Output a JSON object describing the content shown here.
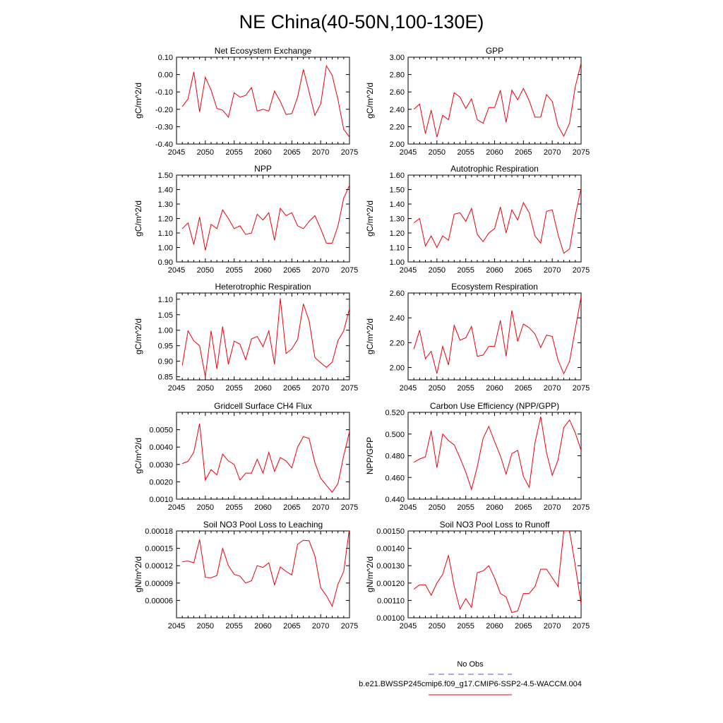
{
  "title": "NE China(40-50N,100-130E)",
  "legend": {
    "obs_label": "No Obs",
    "obs_color": "#5555cc",
    "model_label": "b.e21.BWSSP245cmip6.f09_g17.CMIP6-SSP2-4.5-WACCM.004",
    "model_color": "#e8000b"
  },
  "chart_data": [
    {
      "type": "line",
      "title": "Net Ecosystem Exchange",
      "ylabel": "gC/m^2/d",
      "xlim": [
        2045,
        2075
      ],
      "xticks": [
        "2045",
        "2050",
        "2055",
        "2060",
        "2065",
        "2070",
        "2075"
      ],
      "ylim": [
        -0.4,
        0.1
      ],
      "yticks": [
        "-0.40",
        "-0.30",
        "-0.20",
        "-0.10",
        "0.00",
        "0.10"
      ],
      "x": [
        2046,
        2047,
        2048,
        2049,
        2050,
        2051,
        2052,
        2053,
        2054,
        2055,
        2056,
        2057,
        2058,
        2059,
        2060,
        2061,
        2062,
        2063,
        2064,
        2065,
        2066,
        2067,
        2068,
        2069,
        2070,
        2071,
        2072,
        2073,
        2074,
        2075
      ],
      "series": [
        {
          "values": [
            -0.185,
            -0.14,
            0.015,
            -0.215,
            -0.015,
            -0.09,
            -0.195,
            -0.205,
            -0.245,
            -0.105,
            -0.13,
            -0.12,
            -0.075,
            -0.21,
            -0.2,
            -0.21,
            -0.095,
            -0.155,
            -0.23,
            -0.225,
            -0.13,
            0.03,
            -0.1,
            -0.235,
            -0.17,
            0.05,
            -0.005,
            -0.145,
            -0.315,
            -0.36
          ]
        }
      ]
    },
    {
      "type": "line",
      "title": "GPP",
      "ylabel": "gC/m^2/d",
      "xlim": [
        2045,
        2075
      ],
      "xticks": [
        "2045",
        "2050",
        "2055",
        "2060",
        "2065",
        "2070",
        "2075"
      ],
      "ylim": [
        2.0,
        3.0
      ],
      "yticks": [
        "2.00",
        "2.20",
        "2.40",
        "2.60",
        "2.80",
        "3.00"
      ],
      "x": [
        2046,
        2047,
        2048,
        2049,
        2050,
        2051,
        2052,
        2053,
        2054,
        2055,
        2056,
        2057,
        2058,
        2059,
        2060,
        2061,
        2062,
        2063,
        2064,
        2065,
        2066,
        2067,
        2068,
        2069,
        2070,
        2071,
        2072,
        2073,
        2074,
        2075
      ],
      "series": [
        {
          "values": [
            2.4,
            2.46,
            2.12,
            2.39,
            2.08,
            2.33,
            2.28,
            2.59,
            2.54,
            2.41,
            2.52,
            2.28,
            2.24,
            2.42,
            2.42,
            2.62,
            2.25,
            2.62,
            2.51,
            2.64,
            2.5,
            2.31,
            2.31,
            2.57,
            2.49,
            2.21,
            2.09,
            2.24,
            2.66,
            2.93
          ]
        }
      ]
    },
    {
      "type": "line",
      "title": "NPP",
      "ylabel": "gC/m^2/d",
      "xlim": [
        2045,
        2075
      ],
      "xticks": [
        "2045",
        "2050",
        "2055",
        "2060",
        "2065",
        "2070",
        "2075"
      ],
      "ylim": [
        0.9,
        1.5
      ],
      "yticks": [
        "0.90",
        "1.00",
        "1.10",
        "1.20",
        "1.30",
        "1.40",
        "1.50"
      ],
      "x": [
        2046,
        2047,
        2048,
        2049,
        2050,
        2051,
        2052,
        2053,
        2054,
        2055,
        2056,
        2057,
        2058,
        2059,
        2060,
        2061,
        2062,
        2063,
        2064,
        2065,
        2066,
        2067,
        2068,
        2069,
        2070,
        2071,
        2072,
        2073,
        2074,
        2075
      ],
      "series": [
        {
          "values": [
            1.13,
            1.17,
            1.02,
            1.21,
            0.98,
            1.16,
            1.13,
            1.26,
            1.2,
            1.13,
            1.15,
            1.09,
            1.1,
            1.23,
            1.19,
            1.24,
            1.05,
            1.27,
            1.22,
            1.24,
            1.15,
            1.13,
            1.18,
            1.22,
            1.13,
            1.03,
            1.03,
            1.15,
            1.34,
            1.43
          ]
        }
      ]
    },
    {
      "type": "line",
      "title": "Autotrophic Respiration",
      "ylabel": "gC/m^2/d",
      "xlim": [
        2045,
        2075
      ],
      "xticks": [
        "2045",
        "2050",
        "2055",
        "2060",
        "2065",
        "2070",
        "2075"
      ],
      "ylim": [
        1.0,
        1.6
      ],
      "yticks": [
        "1.00",
        "1.10",
        "1.20",
        "1.30",
        "1.40",
        "1.50",
        "1.60"
      ],
      "x": [
        2046,
        2047,
        2048,
        2049,
        2050,
        2051,
        2052,
        2053,
        2054,
        2055,
        2056,
        2057,
        2058,
        2059,
        2060,
        2061,
        2062,
        2063,
        2064,
        2065,
        2066,
        2067,
        2068,
        2069,
        2070,
        2071,
        2072,
        2073,
        2074,
        2075
      ],
      "series": [
        {
          "values": [
            1.27,
            1.3,
            1.11,
            1.18,
            1.1,
            1.18,
            1.15,
            1.33,
            1.34,
            1.28,
            1.37,
            1.19,
            1.14,
            1.2,
            1.23,
            1.38,
            1.2,
            1.36,
            1.29,
            1.41,
            1.34,
            1.18,
            1.13,
            1.35,
            1.36,
            1.19,
            1.06,
            1.09,
            1.32,
            1.51
          ]
        }
      ]
    },
    {
      "type": "line",
      "title": "Heterotrophic Respiration",
      "ylabel": "gC/m^2/d",
      "xlim": [
        2045,
        2075
      ],
      "xticks": [
        "2045",
        "2050",
        "2055",
        "2060",
        "2065",
        "2070",
        "2075"
      ],
      "ylim": [
        0.84,
        1.12
      ],
      "yticks": [
        "0.85",
        "0.90",
        "0.95",
        "1.00",
        "1.05",
        "1.10"
      ],
      "x": [
        2046,
        2047,
        2048,
        2049,
        2050,
        2051,
        2052,
        2053,
        2054,
        2055,
        2056,
        2057,
        2058,
        2059,
        2060,
        2061,
        2062,
        2063,
        2064,
        2065,
        2066,
        2067,
        2068,
        2069,
        2070,
        2071,
        2072,
        2073,
        2074,
        2075
      ],
      "series": [
        {
          "values": [
            0.887,
            0.998,
            0.966,
            0.95,
            0.85,
            0.998,
            0.875,
            1.012,
            0.89,
            0.965,
            0.955,
            0.905,
            0.972,
            0.98,
            0.947,
            0.998,
            0.89,
            1.103,
            0.925,
            0.94,
            0.97,
            1.085,
            1.03,
            0.912,
            0.895,
            0.88,
            0.897,
            0.967,
            0.998,
            1.07
          ]
        }
      ]
    },
    {
      "type": "line",
      "title": "Ecosystem Respiration",
      "ylabel": "gC/m^2/d",
      "xlim": [
        2045,
        2075
      ],
      "xticks": [
        "2045",
        "2050",
        "2055",
        "2060",
        "2065",
        "2070",
        "2075"
      ],
      "ylim": [
        1.9,
        2.6
      ],
      "yticks": [
        "2.00",
        "2.20",
        "2.40",
        "2.60"
      ],
      "x": [
        2046,
        2047,
        2048,
        2049,
        2050,
        2051,
        2052,
        2053,
        2054,
        2055,
        2056,
        2057,
        2058,
        2059,
        2060,
        2061,
        2062,
        2063,
        2064,
        2065,
        2066,
        2067,
        2068,
        2069,
        2070,
        2071,
        2072,
        2073,
        2074,
        2075
      ],
      "series": [
        {
          "values": [
            2.15,
            2.3,
            2.07,
            2.13,
            1.95,
            2.17,
            2.02,
            2.34,
            2.22,
            2.24,
            2.33,
            2.09,
            2.1,
            2.17,
            2.17,
            2.38,
            2.09,
            2.46,
            2.21,
            2.35,
            2.32,
            2.27,
            2.16,
            2.26,
            2.25,
            2.06,
            1.95,
            2.05,
            2.31,
            2.57
          ]
        }
      ]
    },
    {
      "type": "line",
      "title": "Gridcell Surface CH4 Flux",
      "ylabel": "gC/m^2/d",
      "xlim": [
        2045,
        2075
      ],
      "xticks": [
        "2045",
        "2050",
        "2055",
        "2060",
        "2065",
        "2070",
        "2075"
      ],
      "ylim": [
        0.001,
        0.006
      ],
      "yticks": [
        "0.0010",
        "0.0020",
        "0.0030",
        "0.0040",
        "0.0050"
      ],
      "x": [
        2046,
        2047,
        2048,
        2049,
        2050,
        2051,
        2052,
        2053,
        2054,
        2055,
        2056,
        2057,
        2058,
        2059,
        2060,
        2061,
        2062,
        2063,
        2064,
        2065,
        2066,
        2067,
        2068,
        2069,
        2070,
        2071,
        2072,
        2073,
        2074,
        2075
      ],
      "series": [
        {
          "values": [
            0.00305,
            0.00318,
            0.0037,
            0.00535,
            0.0021,
            0.0027,
            0.0024,
            0.0036,
            0.0032,
            0.003,
            0.0021,
            0.0025,
            0.0025,
            0.0033,
            0.0025,
            0.0037,
            0.0026,
            0.0034,
            0.0032,
            0.0028,
            0.004,
            0.0046,
            0.0045,
            0.0031,
            0.0022,
            0.0018,
            0.0014,
            0.0019,
            0.0035,
            0.0049
          ]
        }
      ]
    },
    {
      "type": "line",
      "title": "Carbon Use Efficiency (NPP/GPP)",
      "ylabel": "NPP/GPP",
      "xlim": [
        2045,
        2075
      ],
      "xticks": [
        "2045",
        "2050",
        "2055",
        "2060",
        "2065",
        "2070",
        "2075"
      ],
      "ylim": [
        0.44,
        0.52
      ],
      "yticks": [
        "0.440",
        "0.460",
        "0.480",
        "0.500",
        "0.520"
      ],
      "x": [
        2046,
        2047,
        2048,
        2049,
        2050,
        2051,
        2052,
        2053,
        2054,
        2055,
        2056,
        2057,
        2058,
        2059,
        2060,
        2061,
        2062,
        2063,
        2064,
        2065,
        2066,
        2067,
        2068,
        2069,
        2070,
        2071,
        2072,
        2073,
        2074,
        2075
      ],
      "series": [
        {
          "values": [
            0.474,
            0.477,
            0.479,
            0.503,
            0.469,
            0.5,
            0.494,
            0.49,
            0.478,
            0.465,
            0.449,
            0.47,
            0.496,
            0.507,
            0.493,
            0.48,
            0.463,
            0.482,
            0.485,
            0.461,
            0.451,
            0.492,
            0.516,
            0.483,
            0.462,
            0.476,
            0.506,
            0.513,
            0.501,
            0.485
          ]
        }
      ]
    },
    {
      "type": "line",
      "title": "Soil NO3 Pool Loss to Leaching",
      "ylabel": "gN/m^2/d",
      "xlim": [
        2045,
        2075
      ],
      "xticks": [
        "2045",
        "2050",
        "2055",
        "2060",
        "2065",
        "2070",
        "2075"
      ],
      "ylim": [
        3e-05,
        0.00018
      ],
      "yticks": [
        "0.00006",
        "0.00009",
        "0.00012",
        "0.00015",
        "0.00018"
      ],
      "x": [
        2046,
        2047,
        2048,
        2049,
        2050,
        2051,
        2052,
        2053,
        2054,
        2055,
        2056,
        2057,
        2058,
        2059,
        2060,
        2061,
        2062,
        2063,
        2064,
        2065,
        2066,
        2067,
        2068,
        2069,
        2070,
        2071,
        2072,
        2073,
        2074,
        2075
      ],
      "series": [
        {
          "values": [
            0.000127,
            0.000128,
            0.000125,
            0.000165,
            0.0001,
            9.9e-05,
            0.000103,
            0.00015,
            0.00012,
            0.000105,
            0.000102,
            9e-05,
            9.4e-05,
            0.00012,
            0.000117,
            0.000125,
            8.7e-05,
            0.000118,
            0.00011,
            0.000104,
            0.000157,
            0.000164,
            0.000163,
            0.000137,
            8.2e-05,
            6.8e-05,
            5e-05,
            8.8e-05,
            0.00011,
            0.000185
          ]
        }
      ]
    },
    {
      "type": "line",
      "title": "Soil NO3 Pool Loss to Runoff",
      "ylabel": "gN/m^2/d",
      "xlim": [
        2045,
        2075
      ],
      "xticks": [
        "2045",
        "2050",
        "2055",
        "2060",
        "2065",
        "2070",
        "2075"
      ],
      "ylim": [
        0.001,
        0.0015
      ],
      "yticks": [
        "0.00100",
        "0.00110",
        "0.00120",
        "0.00130",
        "0.00140",
        "0.00150"
      ],
      "x": [
        2046,
        2047,
        2048,
        2049,
        2050,
        2051,
        2052,
        2053,
        2054,
        2055,
        2056,
        2057,
        2058,
        2059,
        2060,
        2061,
        2062,
        2063,
        2064,
        2065,
        2066,
        2067,
        2068,
        2069,
        2070,
        2071,
        2072,
        2073,
        2074,
        2075
      ],
      "series": [
        {
          "values": [
            0.001165,
            0.00119,
            0.00119,
            0.00113,
            0.0012,
            0.00125,
            0.00136,
            0.00118,
            0.00105,
            0.00111,
            0.00106,
            0.00126,
            0.00127,
            0.0013,
            0.00123,
            0.00114,
            0.00112,
            0.00103,
            0.00104,
            0.00114,
            0.00114,
            0.00118,
            0.00128,
            0.00128,
            0.00123,
            0.00118,
            0.0015,
            0.0015,
            0.0013,
            0.00108
          ]
        }
      ]
    }
  ]
}
